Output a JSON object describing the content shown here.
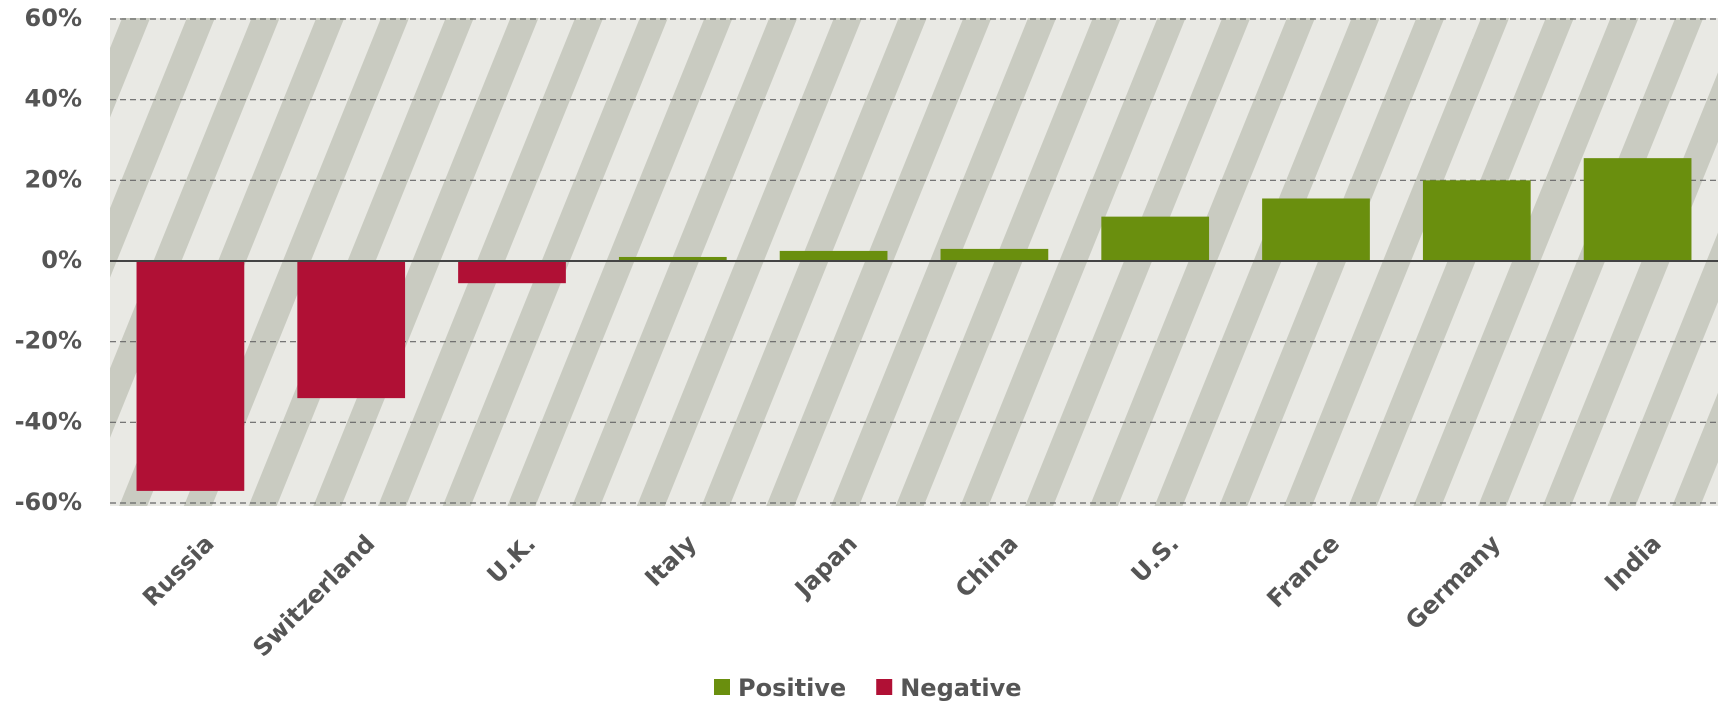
{
  "chart_data": {
    "type": "bar",
    "categories": [
      "Russia",
      "Switzerland",
      "U.K.",
      "Italy",
      "Japan",
      "China",
      "U.S.",
      "France",
      "Germany",
      "India"
    ],
    "series": [
      {
        "name": "Positive",
        "color": "#6a8f0e",
        "values": [
          null,
          null,
          null,
          1,
          2.5,
          3,
          11,
          15.5,
          20,
          25.5
        ]
      },
      {
        "name": "Negative",
        "color": "#b01035",
        "values": [
          -57,
          -34,
          -5.5,
          null,
          null,
          null,
          null,
          null,
          null,
          null
        ]
      }
    ],
    "ylim": [
      -60,
      60
    ],
    "yticks": [
      {
        "value": -60,
        "label": "-60%"
      },
      {
        "value": -40,
        "label": "-40%"
      },
      {
        "value": -20,
        "label": "-20%"
      },
      {
        "value": 0,
        "label": "0%"
      },
      {
        "value": 20,
        "label": "20%"
      },
      {
        "value": 40,
        "label": "40%"
      },
      {
        "value": 60,
        "label": "60%"
      }
    ],
    "grid": true,
    "legend": "bottom"
  }
}
